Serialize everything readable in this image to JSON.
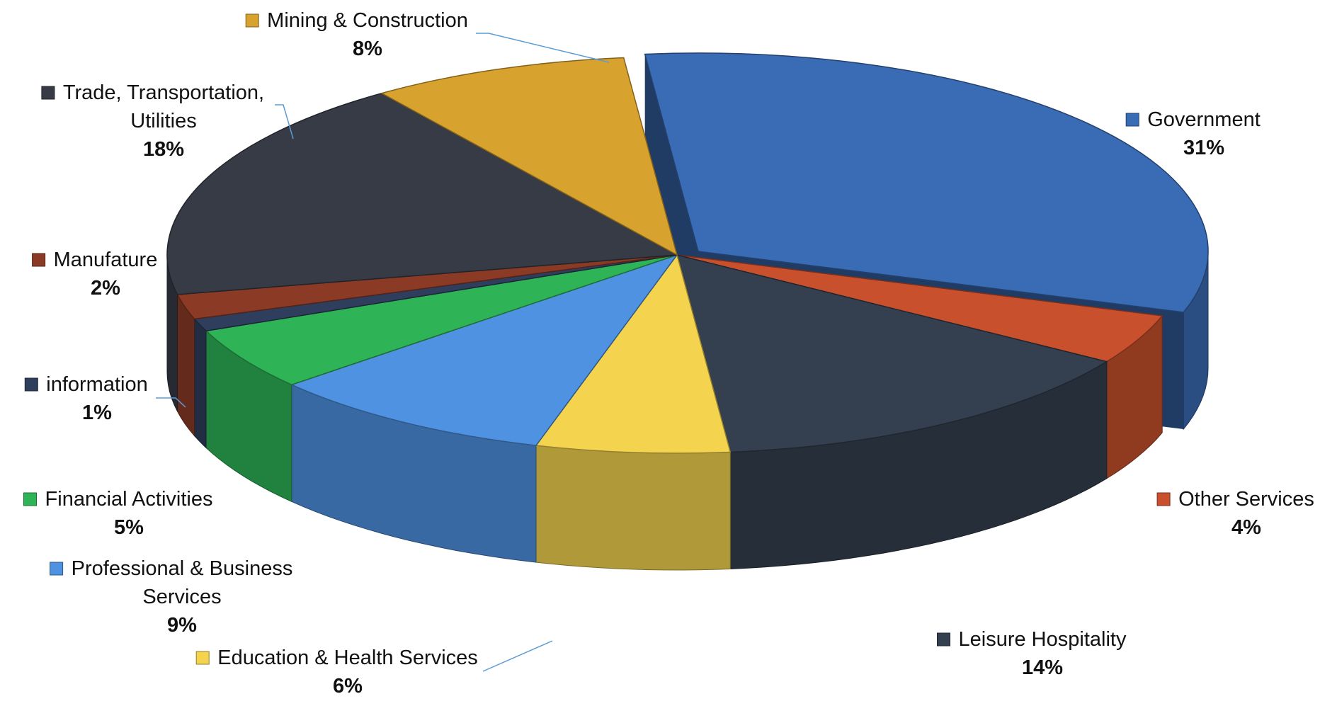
{
  "chart_data": {
    "type": "pie",
    "title": "",
    "legend": "none",
    "style": "3d-exploded",
    "slices": [
      {
        "label": "Government",
        "value": 31,
        "value_label": "31%",
        "color": "#3A6BB5"
      },
      {
        "label": "Other Services",
        "value": 4,
        "value_label": "4%",
        "color": "#C8502D"
      },
      {
        "label": "Leisure Hospitality",
        "value": 14,
        "value_label": "14%",
        "color": "#34404F"
      },
      {
        "label": "Education & Health Services",
        "value": 6,
        "value_label": "6%",
        "color": "#F4D44E"
      },
      {
        "label": "Professional & Business Services",
        "value": 9,
        "value_label": "9%",
        "color": "#4F92E2"
      },
      {
        "label": "Financial Activities",
        "value": 5,
        "value_label": "5%",
        "color": "#2EB457"
      },
      {
        "label": "information",
        "value": 1,
        "value_label": "1%",
        "color": "#2E3E5C"
      },
      {
        "label": "Manufature",
        "value": 2,
        "value_label": "2%",
        "color": "#8B3A26"
      },
      {
        "label": "Trade, Transportation, Utilities",
        "value": 18,
        "value_label": "18%",
        "color": "#363B45"
      },
      {
        "label": "Mining & Construction",
        "value": 8,
        "value_label": "8%",
        "color": "#D8A22E"
      }
    ]
  }
}
